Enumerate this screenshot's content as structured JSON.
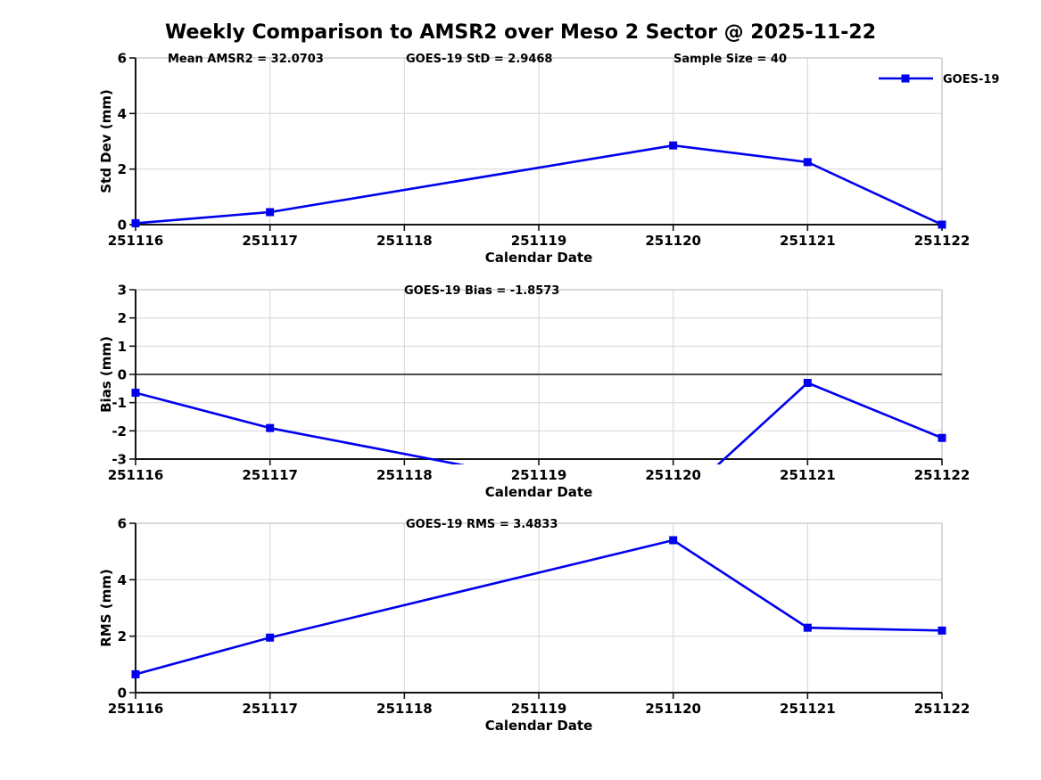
{
  "title": "Weekly Comparison to AMSR2 over Meso 2 Sector @ 2025-11-22",
  "legend": {
    "label": "GOES-19"
  },
  "colors": {
    "background": "#FFFFFF",
    "line": "#0000EE",
    "grid": "#DADADA",
    "box_edge": "#C4C4C4",
    "axis": "#141414",
    "zero_line": "#4D4D4D",
    "text": "#000000"
  },
  "chart_data": [
    {
      "type": "line",
      "ylabel": "Std Dev (mm)",
      "xlabel": "Calendar Date",
      "ylim": [
        0,
        6
      ],
      "yticks": [
        0,
        2,
        4,
        6
      ],
      "x_categories": [
        "251116",
        "251117",
        "251118",
        "251119",
        "251120",
        "251121",
        "251122"
      ],
      "grid": true,
      "legend_position": "top-right-outside",
      "series": [
        {
          "name": "GOES-19",
          "x": [
            "251116",
            "251117",
            "251120",
            "251121",
            "251122"
          ],
          "values": [
            0.05,
            0.45,
            2.85,
            2.25,
            0.0
          ]
        }
      ],
      "annotations": [
        {
          "text": "Mean AMSR2 = 32.0703"
        },
        {
          "text": "GOES-19 StD = 2.9468"
        },
        {
          "text": "Sample Size = 40"
        }
      ]
    },
    {
      "type": "line",
      "ylabel": "Bias (mm)",
      "xlabel": "Calendar Date",
      "ylim": [
        -3,
        3
      ],
      "yticks": [
        -3,
        -2,
        -1,
        0,
        1,
        2,
        3
      ],
      "x_categories": [
        "251116",
        "251117",
        "251118",
        "251119",
        "251120",
        "251121",
        "251122"
      ],
      "grid": true,
      "zero_line": true,
      "series": [
        {
          "name": "GOES-19",
          "x": [
            "251116",
            "251117",
            "251120",
            "251121",
            "251122"
          ],
          "values": [
            -0.65,
            -1.9,
            -4.65,
            -0.3,
            -2.25
          ],
          "note": "value at 251120 lies below axis range and is clipped out of view"
        }
      ],
      "annotations": [
        {
          "text": "GOES-19 Bias  = -1.8573"
        }
      ]
    },
    {
      "type": "line",
      "ylabel": "RMS (mm)",
      "xlabel": "Calendar Date",
      "ylim": [
        0,
        6
      ],
      "yticks": [
        0,
        2,
        4,
        6
      ],
      "x_categories": [
        "251116",
        "251117",
        "251118",
        "251119",
        "251120",
        "251121",
        "251122"
      ],
      "grid": true,
      "series": [
        {
          "name": "GOES-19",
          "x": [
            "251116",
            "251117",
            "251120",
            "251121",
            "251122"
          ],
          "values": [
            0.65,
            1.95,
            5.4,
            2.3,
            2.2
          ]
        }
      ],
      "annotations": [
        {
          "text": "GOES-19 RMS = 3.4833"
        }
      ]
    }
  ]
}
